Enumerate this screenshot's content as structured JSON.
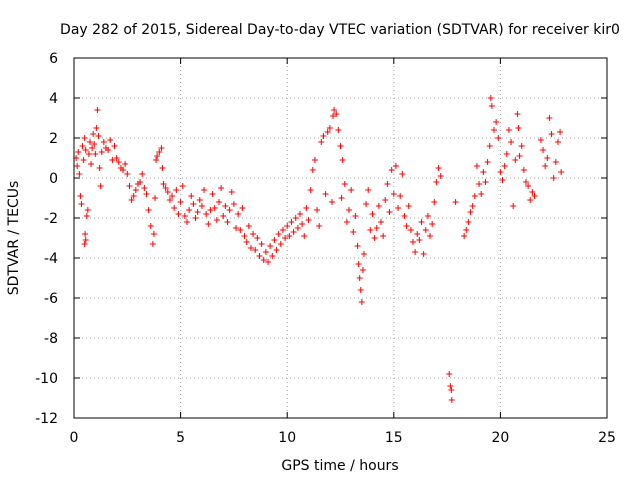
{
  "chart_data": {
    "type": "scatter",
    "title": "Day 282 of 2015, Sidereal Day-to-day VTEC variation (SDTVAR) for receiver kir0",
    "xlabel": "GPS time / hours",
    "ylabel": "SDTVAR / TECUs",
    "xlim": [
      0,
      25
    ],
    "ylim": [
      -12,
      6
    ],
    "xticks": [
      0,
      5,
      10,
      15,
      20,
      25
    ],
    "yticks": [
      -12,
      -10,
      -8,
      -6,
      -4,
      -2,
      0,
      2,
      4,
      6
    ],
    "grid": true,
    "marker": "+",
    "color": "#ff0000",
    "series": [
      {
        "name": "SDTVAR",
        "points": [
          [
            0.1,
            1.0
          ],
          [
            0.15,
            0.6
          ],
          [
            0.2,
            1.3
          ],
          [
            0.25,
            0.2
          ],
          [
            0.3,
            -0.9
          ],
          [
            0.35,
            -1.3
          ],
          [
            0.4,
            1.6
          ],
          [
            0.45,
            0.9
          ],
          [
            0.5,
            2.0
          ],
          [
            0.55,
            1.4
          ],
          [
            0.5,
            -3.3
          ],
          [
            0.52,
            -2.8
          ],
          [
            0.55,
            -3.1
          ],
          [
            0.6,
            -1.9
          ],
          [
            0.65,
            -1.6
          ],
          [
            0.7,
            1.2
          ],
          [
            0.75,
            1.8
          ],
          [
            0.8,
            0.7
          ],
          [
            0.85,
            1.5
          ],
          [
            0.9,
            2.2
          ],
          [
            0.95,
            1.7
          ],
          [
            1.0,
            1.2
          ],
          [
            1.05,
            2.5
          ],
          [
            1.1,
            3.4
          ],
          [
            1.15,
            2.1
          ],
          [
            1.2,
            0.5
          ],
          [
            1.25,
            -0.4
          ],
          [
            1.3,
            1.3
          ],
          [
            1.4,
            1.8
          ],
          [
            1.5,
            1.5
          ],
          [
            1.6,
            1.4
          ],
          [
            1.7,
            1.9
          ],
          [
            1.8,
            0.9
          ],
          [
            1.9,
            1.6
          ],
          [
            2.0,
            1.0
          ],
          [
            2.1,
            0.8
          ],
          [
            2.2,
            0.5
          ],
          [
            2.3,
            0.4
          ],
          [
            2.4,
            0.7
          ],
          [
            2.5,
            0.2
          ],
          [
            2.6,
            -0.4
          ],
          [
            2.7,
            -1.1
          ],
          [
            2.8,
            -0.9
          ],
          [
            2.9,
            -0.6
          ],
          [
            3.0,
            -0.3
          ],
          [
            3.1,
            -0.2
          ],
          [
            3.2,
            0.2
          ],
          [
            3.3,
            -0.5
          ],
          [
            3.4,
            -0.8
          ],
          [
            3.5,
            -1.6
          ],
          [
            3.6,
            -2.4
          ],
          [
            3.7,
            -3.3
          ],
          [
            3.75,
            -2.8
          ],
          [
            3.8,
            -1.0
          ],
          [
            3.85,
            0.9
          ],
          [
            3.9,
            1.1
          ],
          [
            4.0,
            1.3
          ],
          [
            4.1,
            1.5
          ],
          [
            4.15,
            0.5
          ],
          [
            4.2,
            -0.3
          ],
          [
            4.3,
            -0.5
          ],
          [
            4.4,
            -0.7
          ],
          [
            4.5,
            -1.1
          ],
          [
            4.6,
            -0.9
          ],
          [
            4.7,
            -1.5
          ],
          [
            4.8,
            -0.6
          ],
          [
            4.9,
            -1.8
          ],
          [
            5.0,
            -1.2
          ],
          [
            5.1,
            -0.4
          ],
          [
            5.2,
            -1.9
          ],
          [
            5.3,
            -2.2
          ],
          [
            5.4,
            -1.6
          ],
          [
            5.5,
            -0.9
          ],
          [
            5.6,
            -1.3
          ],
          [
            5.7,
            -2.0
          ],
          [
            5.8,
            -1.7
          ],
          [
            5.9,
            -1.1
          ],
          [
            6.0,
            -1.4
          ],
          [
            6.1,
            -0.6
          ],
          [
            6.2,
            -1.8
          ],
          [
            6.3,
            -2.3
          ],
          [
            6.4,
            -1.6
          ],
          [
            6.5,
            -0.8
          ],
          [
            6.6,
            -1.5
          ],
          [
            6.7,
            -2.1
          ],
          [
            6.8,
            -1.2
          ],
          [
            6.9,
            -0.5
          ],
          [
            7.0,
            -1.9
          ],
          [
            7.1,
            -1.4
          ],
          [
            7.2,
            -2.2
          ],
          [
            7.3,
            -1.6
          ],
          [
            7.4,
            -0.7
          ],
          [
            7.5,
            -1.3
          ],
          [
            7.6,
            -2.5
          ],
          [
            7.7,
            -1.8
          ],
          [
            7.8,
            -2.6
          ],
          [
            7.9,
            -1.5
          ],
          [
            8.0,
            -2.9
          ],
          [
            8.1,
            -3.2
          ],
          [
            8.2,
            -2.4
          ],
          [
            8.3,
            -3.5
          ],
          [
            8.4,
            -2.8
          ],
          [
            8.5,
            -3.6
          ],
          [
            8.6,
            -3.0
          ],
          [
            8.7,
            -3.9
          ],
          [
            8.8,
            -3.3
          ],
          [
            8.9,
            -4.1
          ],
          [
            9.0,
            -3.7
          ],
          [
            9.1,
            -4.2
          ],
          [
            9.2,
            -3.4
          ],
          [
            9.3,
            -3.9
          ],
          [
            9.4,
            -3.1
          ],
          [
            9.5,
            -3.6
          ],
          [
            9.6,
            -2.8
          ],
          [
            9.7,
            -3.3
          ],
          [
            9.8,
            -2.6
          ],
          [
            9.9,
            -3.0
          ],
          [
            10.0,
            -2.4
          ],
          [
            10.1,
            -2.9
          ],
          [
            10.2,
            -2.2
          ],
          [
            10.3,
            -2.7
          ],
          [
            10.4,
            -2.0
          ],
          [
            10.5,
            -2.5
          ],
          [
            10.6,
            -1.8
          ],
          [
            10.7,
            -2.3
          ],
          [
            10.8,
            -2.9
          ],
          [
            10.9,
            -1.5
          ],
          [
            11.0,
            -2.1
          ],
          [
            11.1,
            -0.6
          ],
          [
            11.2,
            0.4
          ],
          [
            11.3,
            0.9
          ],
          [
            11.4,
            -1.6
          ],
          [
            11.5,
            -2.4
          ],
          [
            11.6,
            1.8
          ],
          [
            11.7,
            2.1
          ],
          [
            11.8,
            -0.8
          ],
          [
            11.9,
            2.3
          ],
          [
            12.0,
            2.5
          ],
          [
            12.1,
            -1.2
          ],
          [
            12.15,
            3.1
          ],
          [
            12.2,
            3.4
          ],
          [
            12.3,
            3.2
          ],
          [
            12.4,
            2.4
          ],
          [
            12.5,
            1.6
          ],
          [
            12.55,
            -1.0
          ],
          [
            12.6,
            0.9
          ],
          [
            12.7,
            -0.3
          ],
          [
            12.8,
            -2.2
          ],
          [
            12.9,
            -1.6
          ],
          [
            13.0,
            -0.6
          ],
          [
            13.1,
            -2.7
          ],
          [
            13.2,
            -1.9
          ],
          [
            13.3,
            -3.4
          ],
          [
            13.35,
            -4.3
          ],
          [
            13.4,
            -5.0
          ],
          [
            13.45,
            -5.6
          ],
          [
            13.5,
            -6.2
          ],
          [
            13.55,
            -4.6
          ],
          [
            13.6,
            -3.8
          ],
          [
            13.7,
            -1.3
          ],
          [
            13.8,
            -0.6
          ],
          [
            13.9,
            -2.6
          ],
          [
            14.0,
            -1.8
          ],
          [
            14.1,
            -3.0
          ],
          [
            14.2,
            -2.5
          ],
          [
            14.3,
            -1.4
          ],
          [
            14.4,
            -2.2
          ],
          [
            14.5,
            -2.9
          ],
          [
            14.6,
            -1.1
          ],
          [
            14.7,
            -0.3
          ],
          [
            14.8,
            -1.7
          ],
          [
            14.9,
            0.4
          ],
          [
            15.0,
            -0.8
          ],
          [
            15.1,
            0.6
          ],
          [
            15.2,
            -1.5
          ],
          [
            15.3,
            -0.9
          ],
          [
            15.4,
            0.2
          ],
          [
            15.5,
            -1.9
          ],
          [
            15.6,
            -2.4
          ],
          [
            15.7,
            -1.4
          ],
          [
            15.8,
            -2.6
          ],
          [
            15.9,
            -3.2
          ],
          [
            16.0,
            -3.7
          ],
          [
            16.1,
            -2.8
          ],
          [
            16.2,
            -3.1
          ],
          [
            16.3,
            -2.2
          ],
          [
            16.4,
            -3.8
          ],
          [
            16.5,
            -2.6
          ],
          [
            16.6,
            -1.9
          ],
          [
            16.7,
            -2.9
          ],
          [
            16.8,
            -2.3
          ],
          [
            16.9,
            -1.2
          ],
          [
            17.0,
            -0.2
          ],
          [
            17.1,
            0.5
          ],
          [
            17.2,
            0.1
          ],
          [
            17.6,
            -9.8
          ],
          [
            17.65,
            -10.4
          ],
          [
            17.7,
            -10.6
          ],
          [
            17.72,
            -11.1
          ],
          [
            17.9,
            -1.2
          ],
          [
            18.3,
            -2.9
          ],
          [
            18.4,
            -2.6
          ],
          [
            18.5,
            -2.2
          ],
          [
            18.6,
            -1.7
          ],
          [
            18.7,
            -1.4
          ],
          [
            18.8,
            -0.9
          ],
          [
            18.9,
            0.6
          ],
          [
            19.0,
            -0.3
          ],
          [
            19.1,
            -0.8
          ],
          [
            19.2,
            0.3
          ],
          [
            19.3,
            -0.2
          ],
          [
            19.4,
            0.8
          ],
          [
            19.5,
            1.6
          ],
          [
            19.55,
            4.0
          ],
          [
            19.6,
            3.6
          ],
          [
            19.7,
            2.4
          ],
          [
            19.8,
            2.8
          ],
          [
            19.9,
            2.0
          ],
          [
            20.0,
            0.3
          ],
          [
            20.1,
            -0.1
          ],
          [
            20.2,
            0.6
          ],
          [
            20.3,
            1.2
          ],
          [
            20.4,
            2.4
          ],
          [
            20.5,
            1.8
          ],
          [
            20.6,
            -1.4
          ],
          [
            20.7,
            0.9
          ],
          [
            20.8,
            3.2
          ],
          [
            20.85,
            2.5
          ],
          [
            20.9,
            1.1
          ],
          [
            21.0,
            1.6
          ],
          [
            21.1,
            0.4
          ],
          [
            21.2,
            -0.2
          ],
          [
            21.3,
            -0.4
          ],
          [
            21.4,
            -1.1
          ],
          [
            21.5,
            -0.7
          ],
          [
            21.6,
            -0.9
          ],
          [
            21.9,
            1.9
          ],
          [
            22.0,
            1.4
          ],
          [
            22.1,
            0.6
          ],
          [
            22.2,
            1.0
          ],
          [
            22.3,
            3.0
          ],
          [
            22.4,
            2.2
          ],
          [
            22.5,
            0.0
          ],
          [
            22.6,
            0.8
          ],
          [
            22.7,
            1.8
          ],
          [
            22.8,
            2.3
          ],
          [
            22.85,
            0.3
          ]
        ]
      }
    ]
  }
}
